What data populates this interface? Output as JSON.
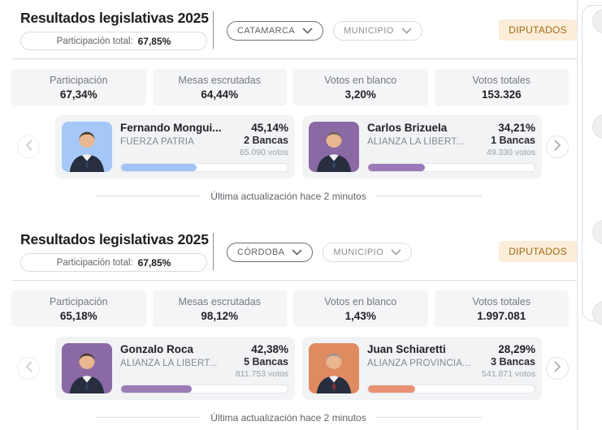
{
  "theme": {
    "badge_bg": "#fcedd8",
    "badge_text": "#a06a12"
  },
  "panels": [
    {
      "title": "Resultados legislativas 2025",
      "participation": {
        "label": "Participación total:",
        "value": "67,85%"
      },
      "dropdowns": {
        "region": "CATAMARCA",
        "level": "MUNICIPIO"
      },
      "badge": "DIPUTADOS",
      "stats": [
        {
          "label": "Participación",
          "value": "67,34%"
        },
        {
          "label": "Mesas escrutadas",
          "value": "64,44%"
        },
        {
          "label": "Votos en blanco",
          "value": "3,20%"
        },
        {
          "label": "Votos totales",
          "value": "153.326"
        }
      ],
      "candidates": [
        {
          "name": "Fernando Mongui...",
          "party": "FUERZA PATRIA",
          "percent": "45,14%",
          "percent_num": 45.14,
          "seats": "2 Bancas",
          "votes": "65.090 votos",
          "bar_color": "#a2c3f6",
          "photo_bg": "#a6c8f8"
        },
        {
          "name": "Carlos Brizuela",
          "party": "ALIANZA LA LIBERT...",
          "percent": "34,21%",
          "percent_num": 34.21,
          "seats": "1 Bancas",
          "votes": "49.330 votos",
          "bar_color": "#9c7ab8",
          "photo_bg": "#8b69a4"
        }
      ],
      "last_update": "Última actualización hace 2 minutos"
    },
    {
      "title": "Resultados legislativas 2025",
      "participation": {
        "label": "Participación total:",
        "value": "67,85%"
      },
      "dropdowns": {
        "region": "CÓRDOBA",
        "level": "MUNICIPIO"
      },
      "badge": "DIPUTADOS",
      "stats": [
        {
          "label": "Participación",
          "value": "65,18%"
        },
        {
          "label": "Mesas escrutadas",
          "value": "98,12%"
        },
        {
          "label": "Votos en blanco",
          "value": "1,43%"
        },
        {
          "label": "Votos totales",
          "value": "1.997.081"
        }
      ],
      "candidates": [
        {
          "name": "Gonzalo Roca",
          "party": "ALIANZA LA LIBERT...",
          "percent": "42,38%",
          "percent_num": 42.38,
          "seats": "5 Bancas",
          "votes": "811.753 votos",
          "bar_color": "#9c7ab8",
          "photo_bg": "#8b69a4"
        },
        {
          "name": "Juan Schiaretti",
          "party": "ALIANZA PROVINCIA...",
          "percent": "28,29%",
          "percent_num": 28.29,
          "seats": "3 Bancas",
          "votes": "541.871 votos",
          "bar_color": "#e89272",
          "photo_bg": "#e08a62"
        }
      ],
      "last_update": "Última actualización hace 2 minutos"
    }
  ]
}
